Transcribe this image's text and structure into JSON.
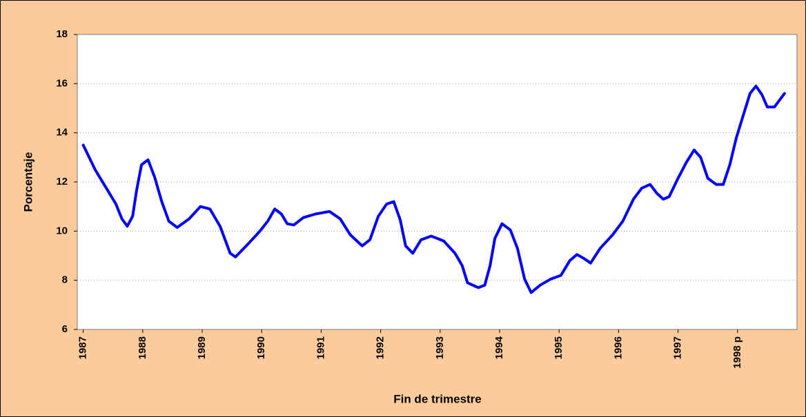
{
  "chart_data": {
    "type": "line",
    "y_label": "Porcentaje",
    "x_label": "Fin de trimestre",
    "x": [
      1987.0,
      1987.2,
      1987.4,
      1987.55,
      1987.65,
      1987.74,
      1987.83,
      1987.9,
      1987.98,
      1988.09,
      1988.2,
      1988.32,
      1988.44,
      1988.58,
      1988.78,
      1988.97,
      1989.13,
      1989.3,
      1989.47,
      1989.56,
      1989.76,
      1989.97,
      1990.1,
      1990.22,
      1990.33,
      1990.43,
      1990.54,
      1990.7,
      1990.91,
      1991.14,
      1991.32,
      1991.49,
      1991.69,
      1991.82,
      1991.96,
      1992.1,
      1992.22,
      1992.33,
      1992.42,
      1992.54,
      1992.68,
      1992.85,
      1993.06,
      1993.25,
      1993.37,
      1993.46,
      1993.64,
      1993.75,
      1993.84,
      1993.92,
      1994.04,
      1994.18,
      1994.3,
      1994.42,
      1994.53,
      1994.68,
      1994.86,
      1995.03,
      1995.18,
      1995.3,
      1995.41,
      1995.53,
      1995.69,
      1995.9,
      1996.07,
      1996.25,
      1996.39,
      1996.53,
      1996.64,
      1996.75,
      1996.85,
      1997.0,
      1997.14,
      1997.27,
      1997.38,
      1997.5,
      1997.64,
      1997.76,
      1997.87,
      1997.98,
      1998.12,
      1998.21,
      1998.31,
      1998.41,
      1998.5,
      1998.62,
      1998.79
    ],
    "series": [
      {
        "color": "#0000ff",
        "values": [
          13.5,
          12.5,
          11.7,
          11.1,
          10.5,
          10.2,
          10.6,
          11.7,
          12.7,
          12.9,
          12.2,
          11.2,
          10.4,
          10.15,
          10.5,
          11.0,
          10.9,
          10.2,
          9.1,
          8.95,
          9.45,
          10.0,
          10.4,
          10.9,
          10.7,
          10.3,
          10.25,
          10.55,
          10.7,
          10.8,
          10.5,
          9.85,
          9.4,
          9.65,
          10.6,
          11.1,
          11.2,
          10.45,
          9.4,
          9.1,
          9.65,
          9.8,
          9.6,
          9.1,
          8.6,
          7.9,
          7.7,
          7.8,
          8.6,
          9.7,
          10.3,
          10.05,
          9.3,
          8.05,
          7.5,
          7.8,
          8.05,
          8.2,
          8.8,
          9.05,
          8.9,
          8.7,
          9.3,
          9.85,
          10.4,
          11.3,
          11.75,
          11.9,
          11.55,
          11.3,
          11.4,
          12.15,
          12.8,
          13.3,
          13.0,
          12.15,
          11.9,
          11.9,
          12.7,
          13.8,
          14.9,
          15.6,
          15.9,
          15.55,
          15.05,
          15.05,
          15.6
        ]
      }
    ],
    "xlim": [
      1986.9,
      1999.0
    ],
    "xticks": [
      1987,
      1988,
      1989,
      1990,
      1991,
      1992,
      1993,
      1994,
      1995,
      1996,
      1997,
      {
        "value": 1998,
        "label": "1998 p"
      }
    ],
    "ylim": [
      6,
      18
    ],
    "yticks": [
      6,
      8,
      10,
      12,
      14,
      16,
      18
    ],
    "grid": true
  }
}
